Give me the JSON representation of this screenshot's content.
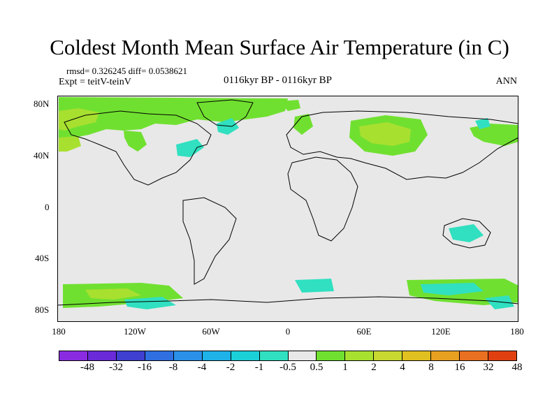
{
  "title": "Coldest Month Mean Surface Air Temperature (in C)",
  "stats": {
    "rmsd_line": "rmsd= 0.326245 diff= 0.0538621",
    "expt_line": "Expt = teitV-teinV",
    "period": "0116kyr BP - 0116kyr BP",
    "season": "ANN"
  },
  "axes": {
    "y_labels": [
      "80N",
      "40N",
      "0",
      "40S",
      "80S"
    ],
    "x_labels": [
      "180",
      "120W",
      "60W",
      "0",
      "60E",
      "120E",
      "180"
    ]
  },
  "colorbar": {
    "labels": [
      "-48",
      "-32",
      "-16",
      "-8",
      "-4",
      "-2",
      "-1",
      "-0.5",
      "0.5",
      "1",
      "2",
      "4",
      "8",
      "16",
      "32",
      "48"
    ],
    "colors": [
      "#8a2be2",
      "#6a2ad8",
      "#3f3fd0",
      "#2f6fe0",
      "#2a90e8",
      "#1eb2e8",
      "#1cd0d8",
      "#30e0c0",
      "#e8e8e8",
      "#70e030",
      "#a8e030",
      "#c8d830",
      "#e0c020",
      "#e8a020",
      "#e87020",
      "#e04010"
    ]
  },
  "map_colors": {
    "ocean": "#e8e8e8",
    "land_outline": "#000000",
    "warm_light": "#70e030",
    "warm_mid": "#a8e030",
    "cool_light": "#30e0c0"
  }
}
